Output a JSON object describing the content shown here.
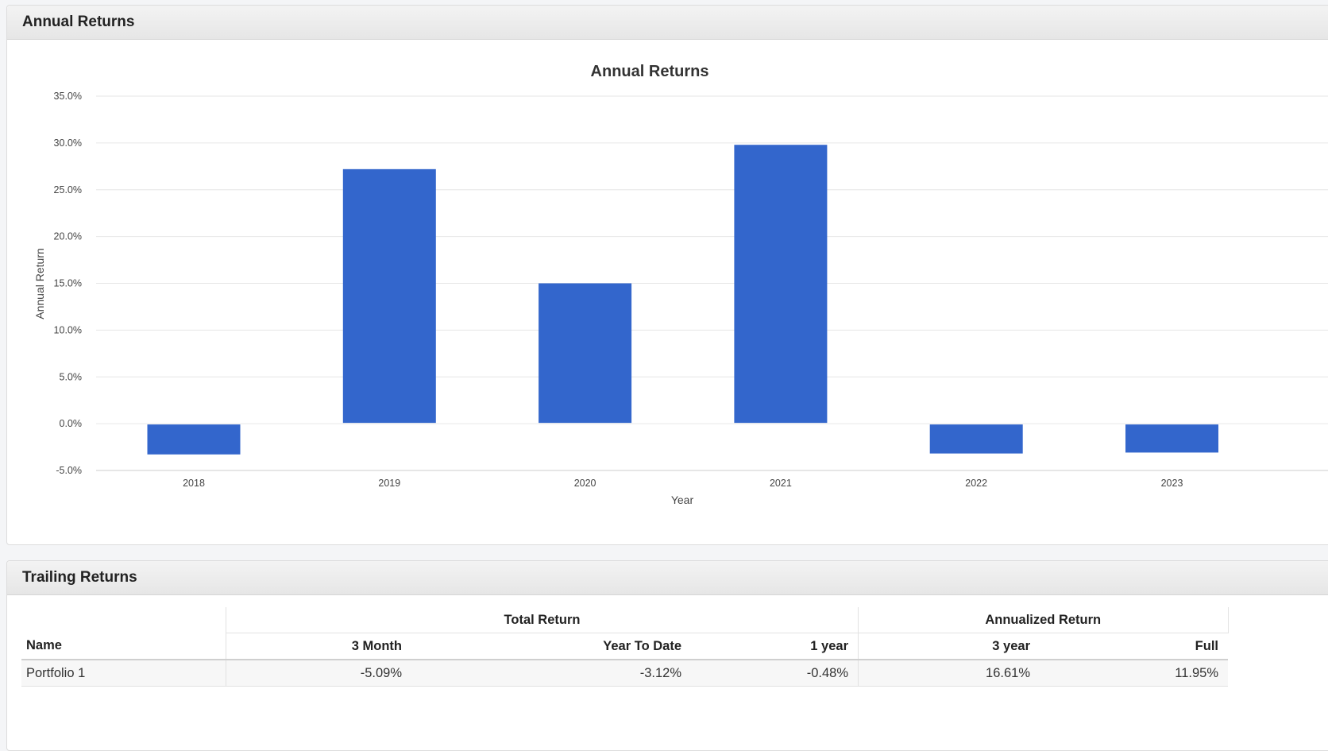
{
  "annual_panel": {
    "header": "Annual Returns"
  },
  "trailing_panel": {
    "header": "Trailing Returns"
  },
  "colors": {
    "bar": "#3366cc",
    "grid": "#e6e6e6",
    "axis": "#cccccc"
  },
  "chart_data": {
    "type": "bar",
    "title": "Annual Returns",
    "xlabel": "Year",
    "ylabel": "Annual Return",
    "categories": [
      "2018",
      "2019",
      "2020",
      "2021",
      "2022",
      "2023"
    ],
    "values": [
      -3.2,
      27.2,
      15.0,
      29.8,
      -3.1,
      -3.0
    ],
    "ylim": [
      -5,
      35
    ],
    "yticks": [
      "-5.0%",
      "0.0%",
      "5.0%",
      "10.0%",
      "15.0%",
      "20.0%",
      "25.0%",
      "30.0%",
      "35.0%"
    ],
    "grid": true,
    "legend": "none"
  },
  "trailing": {
    "groups": {
      "total": "Total Return",
      "annualized": "Annualized Return"
    },
    "columns": {
      "name": "Name",
      "m3": "3 Month",
      "ytd": "Year To Date",
      "y1": "1 year",
      "y3": "3 year",
      "full": "Full"
    },
    "rows": [
      {
        "name": "Portfolio 1",
        "m3": "-5.09%",
        "ytd": "-3.12%",
        "y1": "-0.48%",
        "y3": "16.61%",
        "full": "11.95%"
      }
    ]
  }
}
